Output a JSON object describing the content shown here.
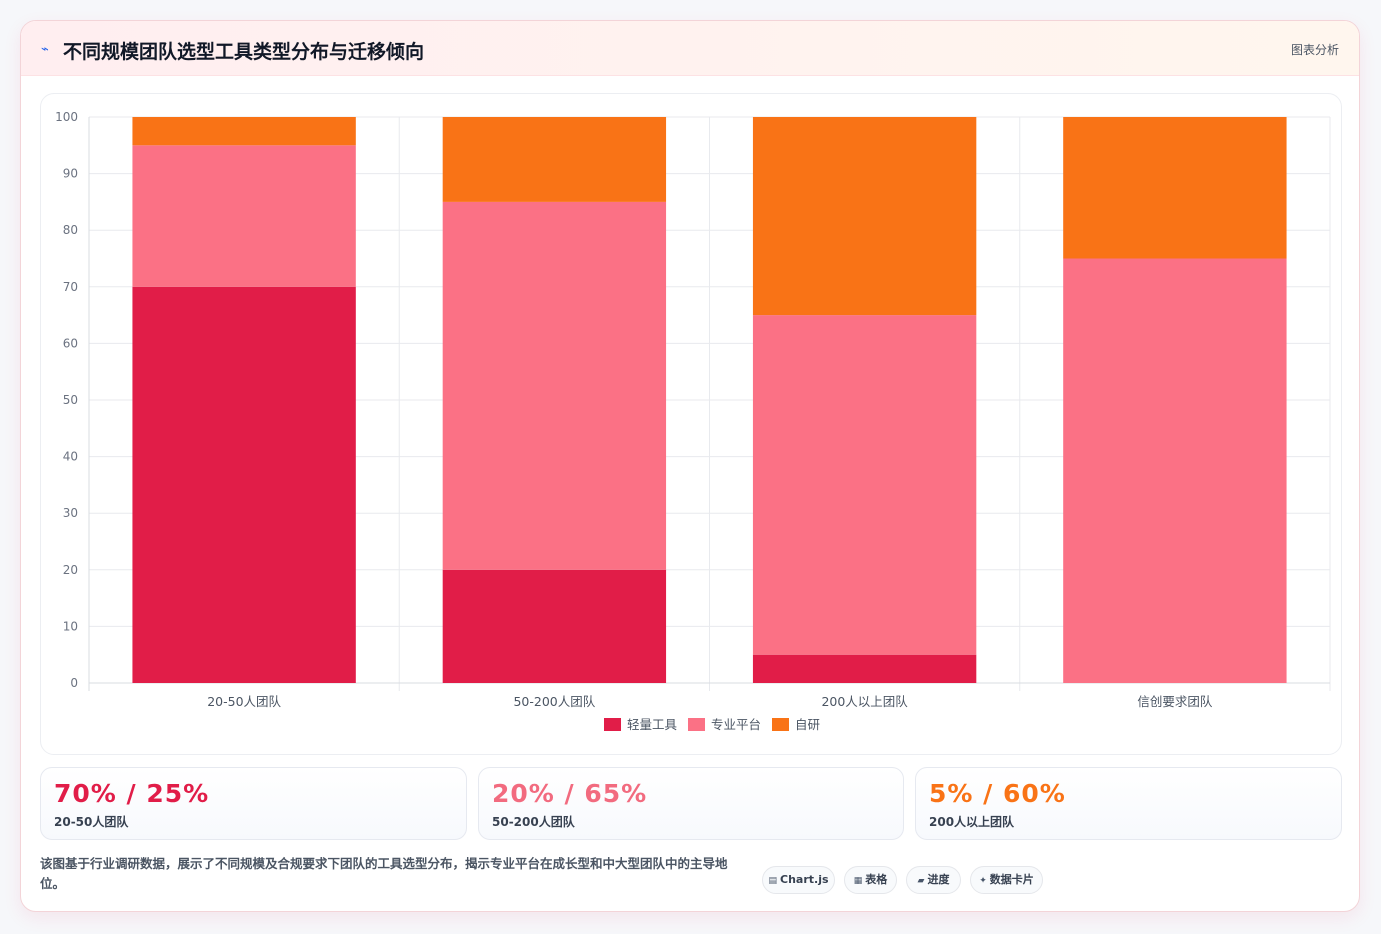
{
  "header": {
    "icon": "chart-icon",
    "title": "不同规模团队选型工具类型分布与迁移倾向",
    "tag": "图表分析"
  },
  "chart_data": {
    "type": "bar",
    "stacked": true,
    "categories": [
      "20-50人团队",
      "50-200人团队",
      "200人以上团队",
      "信创要求团队"
    ],
    "series": [
      {
        "name": "轻量工具",
        "values": [
          70,
          20,
          5,
          0
        ],
        "color": "#e11d48"
      },
      {
        "name": "专业平台",
        "values": [
          25,
          65,
          60,
          75
        ],
        "color": "#fb7185"
      },
      {
        "name": "自研",
        "values": [
          5,
          15,
          35,
          25
        ],
        "color": "#f97316"
      }
    ],
    "ylim": [
      0,
      100
    ],
    "yticks": [
      0,
      10,
      20,
      30,
      40,
      50,
      60,
      70,
      80,
      90,
      100
    ],
    "grid": true,
    "legend_position": "bottom",
    "title": "",
    "xlabel": "",
    "ylabel": ""
  },
  "kpis": [
    {
      "value": "70% / 25%",
      "label": "20-50人团队",
      "color": "#e11d48"
    },
    {
      "value": "20% / 65%",
      "label": "50-200人团队",
      "color": "#f26b7f"
    },
    {
      "value": "5% / 60%",
      "label": "200人以上团队",
      "color": "#f97316"
    }
  ],
  "footnote": "该图基于行业调研数据，展示了不同规模及合规要求下团队的工具选型分布，揭示专业平台在成长型和中大型团队中的主导地位。",
  "chips": [
    {
      "icon": "▤",
      "label": "Chart.js"
    },
    {
      "icon": "▦",
      "label": "表格"
    },
    {
      "icon": "▰",
      "label": "进度"
    },
    {
      "icon": "✦",
      "label": "数据卡片"
    }
  ]
}
